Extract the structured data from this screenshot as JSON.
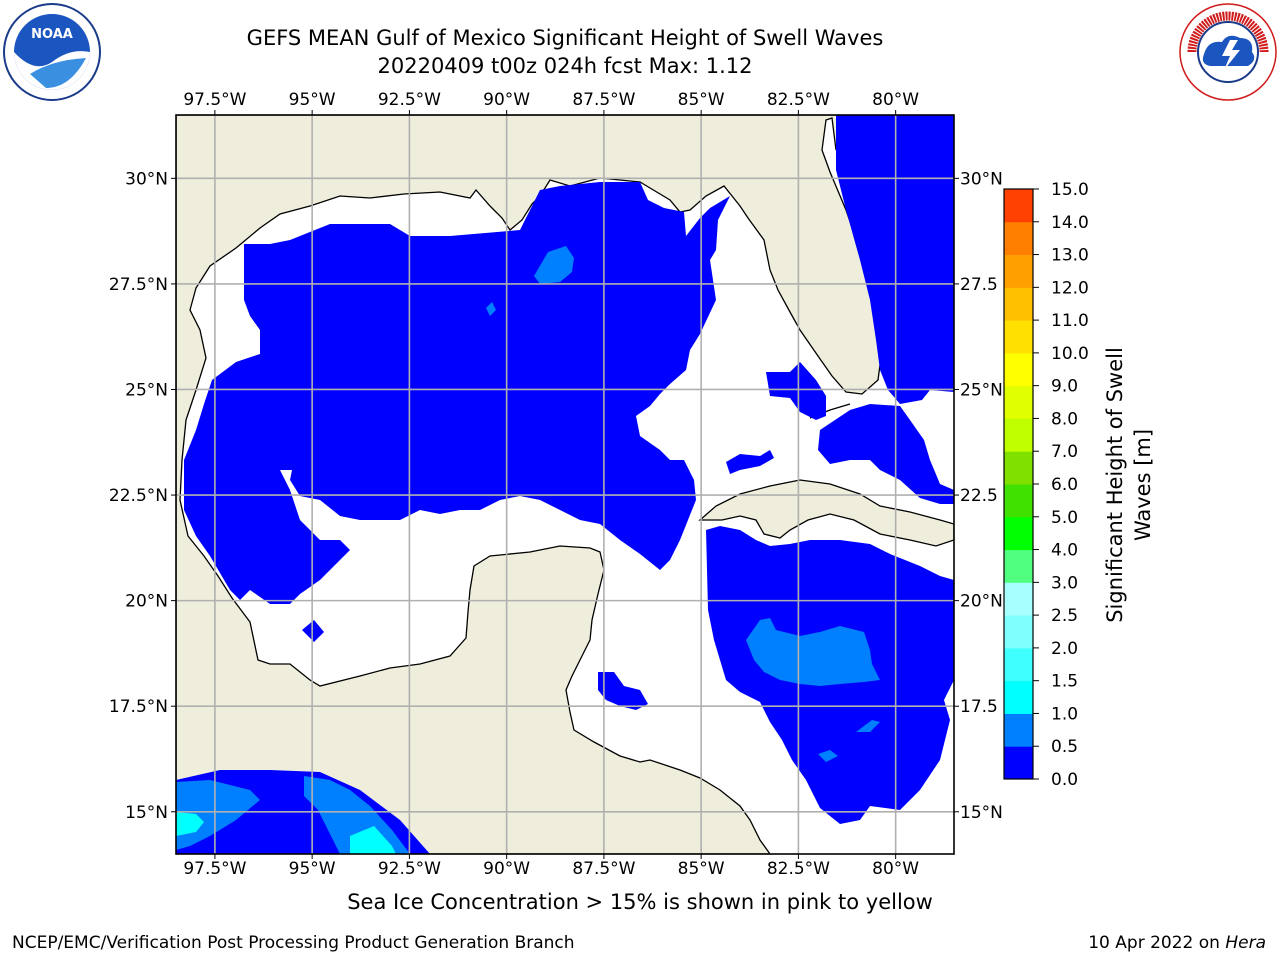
{
  "title": {
    "line1": "GEFS MEAN Gulf of Mexico Significant Height of Swell Waves",
    "line2": "20220409 t00z 024h fcst   Max: 1.12"
  },
  "caption": "Sea Ice Concentration > 15% is shown in pink to yellow",
  "footer": {
    "left": "NCEP/EMC/Verification Post Processing Product Generation Branch",
    "right_date": "10 Apr 2022 on",
    "right_host": "Hera"
  },
  "logos": {
    "noaa": "NOAA",
    "nws": "NATIONAL WEATHER SERVICE"
  },
  "map": {
    "lon_range": [
      -98.5,
      -78.5
    ],
    "lat_range": [
      14,
      31.5
    ],
    "lon_ticks": [
      "97.5°W",
      "95°W",
      "92.5°W",
      "90°W",
      "87.5°W",
      "85°W",
      "82.5°W",
      "80°W"
    ],
    "lat_ticks_left": [
      "30°N",
      "27.5°N",
      "25°N",
      "22.5°N",
      "20°N",
      "17.5°N",
      "15°N"
    ],
    "lat_ticks_right": [
      "30°N",
      "27.5",
      "25°N",
      "22.5",
      "20°N",
      "17.5",
      "15°N"
    ],
    "land_color": "#efeedc",
    "low_swell_color": "#0000ff",
    "mid_swell_color": "#0080ff",
    "high_swell_color": "#00ffff"
  },
  "colorbar": {
    "label_line1": "Significant Height of Swell",
    "label_line2": "Waves [m]",
    "ticks": [
      "0.0",
      "0.5",
      "1.0",
      "1.5",
      "2.0",
      "2.5",
      "3.0",
      "4.0",
      "5.0",
      "6.0",
      "7.0",
      "8.0",
      "9.0",
      "10.0",
      "11.0",
      "12.0",
      "13.0",
      "14.0",
      "15.0"
    ],
    "colors": [
      "#0000ff",
      "#0080ff",
      "#00ffff",
      "#40ffff",
      "#80ffff",
      "#a8ffff",
      "#50ff80",
      "#00ff00",
      "#40e000",
      "#80e000",
      "#c0ff00",
      "#e0ff00",
      "#ffff00",
      "#ffe000",
      "#ffc000",
      "#ffa000",
      "#ff8000",
      "#ff4000",
      "#ff0000"
    ]
  }
}
